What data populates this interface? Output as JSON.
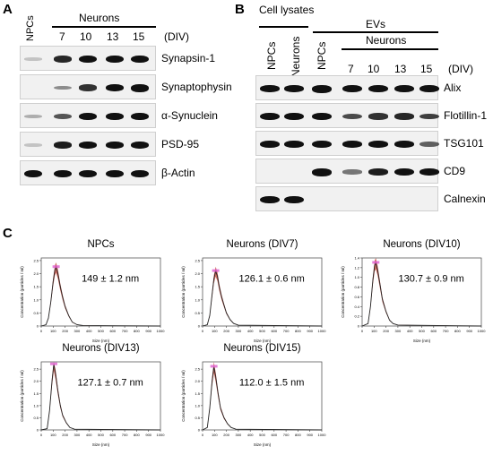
{
  "panelA": {
    "letter": "A",
    "header_npc": "NPCs",
    "header_neurons": "Neurons",
    "div_label": "(DIV)",
    "days": [
      "7",
      "10",
      "13",
      "15"
    ],
    "rows": [
      {
        "label": "Synapsin-1",
        "intensities": [
          0.05,
          0.75,
          0.95,
          0.95,
          0.95
        ]
      },
      {
        "label": "Synaptophysin",
        "intensities": [
          0.0,
          0.3,
          0.7,
          0.85,
          1.0
        ]
      },
      {
        "label": "α-Synuclein",
        "intensities": [
          0.15,
          0.55,
          0.9,
          0.9,
          0.9
        ]
      },
      {
        "label": "PSD-95",
        "intensities": [
          0.05,
          0.8,
          0.85,
          0.85,
          0.85
        ]
      },
      {
        "label": "β-Actin",
        "intensities": [
          0.95,
          0.95,
          0.95,
          0.95,
          0.95
        ]
      }
    ]
  },
  "panelB": {
    "letter": "B",
    "cell_lysates": "Cell lysates",
    "evs": "EVs",
    "lane_npcs": "NPCs",
    "lane_neurons": "Neurons",
    "header_neurons": "Neurons",
    "div_label": "(DIV)",
    "days": [
      "7",
      "10",
      "13",
      "15"
    ],
    "rows": [
      {
        "label": "Alix",
        "intensities": [
          0.85,
          0.85,
          1.0,
          0.9,
          0.9,
          0.9,
          0.9
        ]
      },
      {
        "label": "Flotillin-1",
        "intensities": [
          0.95,
          0.95,
          0.9,
          0.6,
          0.7,
          0.75,
          0.65
        ]
      },
      {
        "label": "TSG101",
        "intensities": [
          0.9,
          0.9,
          0.95,
          0.85,
          0.85,
          0.85,
          0.5
        ]
      },
      {
        "label": "CD9",
        "intensities": [
          0.0,
          0.0,
          1.0,
          0.4,
          0.8,
          0.95,
          0.85
        ]
      },
      {
        "label": "Calnexin",
        "intensities": [
          0.95,
          0.95,
          0.0,
          0.0,
          0.0,
          0.0,
          0.0
        ]
      }
    ]
  },
  "panelC": {
    "letter": "C",
    "ylabel": "Concentration (particles / ml)",
    "xlabel": "Size (nm)",
    "xticks": [
      "0",
      "100",
      "200",
      "300",
      "400",
      "500",
      "600",
      "700",
      "800",
      "900",
      "1000"
    ]
  },
  "chart_data": [
    {
      "type": "line",
      "title": "NPCs",
      "annotation": "149 ± 1.2 nm",
      "xlabel": "Size (nm)",
      "ylabel": "Concentration (particles / ml)",
      "xlim": [
        0,
        1000
      ],
      "yticks": [
        "0",
        "0.5",
        "1.0",
        "1.5",
        "2.0",
        "2.5"
      ],
      "ylim": [
        0,
        2.6
      ],
      "peak_x": 125,
      "peak_y": 2.25,
      "x": [
        0,
        40,
        60,
        80,
        100,
        115,
        125,
        140,
        160,
        180,
        200,
        230,
        260,
        300,
        350,
        1000
      ],
      "y": [
        0,
        0.05,
        0.3,
        0.9,
        1.7,
        2.15,
        2.25,
        2.0,
        1.5,
        1.1,
        0.75,
        0.4,
        0.15,
        0.05,
        0.02,
        0
      ]
    },
    {
      "type": "line",
      "title": "Neurons (DIV7)",
      "annotation": "126.1 ± 0.6 nm",
      "xlabel": "Size (nm)",
      "ylabel": "Concentration (particles / ml)",
      "xlim": [
        0,
        1000
      ],
      "yticks": [
        "0",
        "0.5",
        "1.0",
        "1.5",
        "2.0",
        "2.5"
      ],
      "ylim": [
        0,
        2.6
      ],
      "peak_x": 110,
      "peak_y": 2.1,
      "x": [
        0,
        40,
        60,
        80,
        95,
        110,
        125,
        140,
        160,
        180,
        200,
        230,
        260,
        300,
        1000
      ],
      "y": [
        0,
        0.05,
        0.4,
        1.2,
        1.8,
        2.1,
        1.9,
        1.5,
        1.1,
        0.8,
        0.5,
        0.25,
        0.1,
        0.03,
        0
      ]
    },
    {
      "type": "line",
      "title": "Neurons (DIV10)",
      "annotation": "130.7 ± 0.9 nm",
      "xlabel": "Size (nm)",
      "ylabel": "Concentration (particles / ml)",
      "xlim": [
        0,
        1000
      ],
      "yticks": [
        "0",
        "0.2",
        "0.4",
        "0.6",
        "0.8",
        "1.0",
        "1.2",
        "1.4"
      ],
      "ylim": [
        0,
        1.4
      ],
      "peak_x": 115,
      "peak_y": 1.3,
      "x": [
        0,
        50,
        70,
        90,
        105,
        115,
        130,
        150,
        170,
        200,
        230,
        260,
        300,
        1000
      ],
      "y": [
        0,
        0.05,
        0.4,
        0.95,
        1.25,
        1.3,
        1.15,
        0.85,
        0.55,
        0.3,
        0.12,
        0.05,
        0.02,
        0
      ]
    },
    {
      "type": "line",
      "title": "Neurons (DIV13)",
      "annotation": "127.1 ± 0.7 nm",
      "xlabel": "Size (nm)",
      "ylabel": "Concentration (particles / ml)",
      "xlim": [
        0,
        1000
      ],
      "yticks": [
        "0",
        "0.5",
        "1.0",
        "1.5",
        "2.0",
        "2.5"
      ],
      "ylim": [
        0,
        2.8
      ],
      "peak_x": 105,
      "peak_y": 2.7,
      "x": [
        0,
        50,
        70,
        90,
        105,
        120,
        140,
        160,
        180,
        210,
        240,
        280,
        1000
      ],
      "y": [
        0,
        0.05,
        0.8,
        2.0,
        2.7,
        2.3,
        1.6,
        1.0,
        0.6,
        0.3,
        0.1,
        0.03,
        0
      ]
    },
    {
      "type": "line",
      "title": "Neurons (DIV15)",
      "annotation": "112.0 ± 1.5 nm",
      "xlabel": "Size (nm)",
      "ylabel": "Concentration (particles / ml)",
      "xlim": [
        0,
        1000
      ],
      "yticks": [
        "0",
        "0.5",
        "1.0",
        "1.5",
        "2.0",
        "2.5"
      ],
      "ylim": [
        0,
        2.8
      ],
      "peak_x": 95,
      "peak_y": 2.6,
      "x": [
        0,
        40,
        60,
        80,
        95,
        110,
        130,
        150,
        180,
        210,
        240,
        280,
        1000
      ],
      "y": [
        0,
        0.1,
        0.9,
        2.0,
        2.6,
        2.2,
        1.5,
        0.9,
        0.5,
        0.25,
        0.1,
        0.03,
        0
      ]
    }
  ]
}
